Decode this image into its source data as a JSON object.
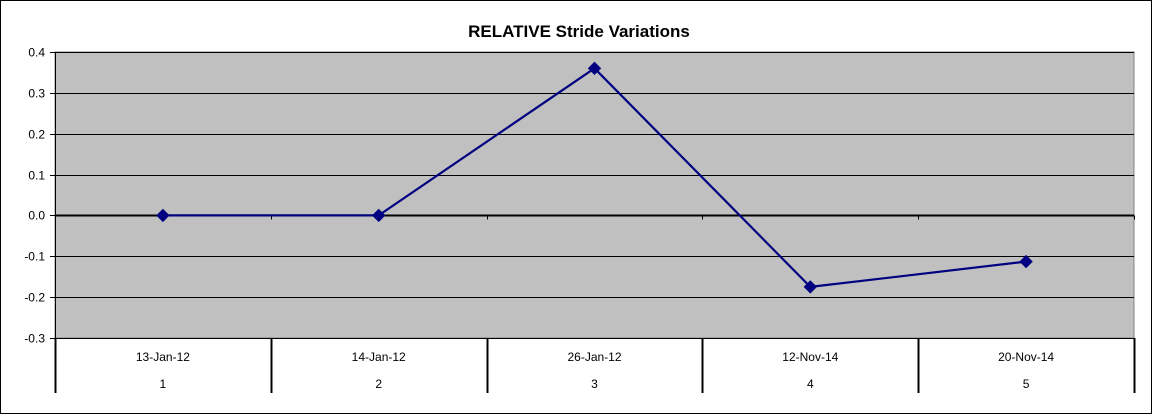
{
  "chart_data": {
    "type": "line",
    "title": "RELATIVE Stride Variations",
    "xlabel": "",
    "ylabel": "",
    "categories": [
      "13-Jan-12",
      "14-Jan-12",
      "26-Jan-12",
      "12-Nov-14",
      "20-Nov-14"
    ],
    "category_index": [
      "1",
      "2",
      "3",
      "4",
      "5"
    ],
    "series": [
      {
        "values": [
          0.0,
          0.0,
          0.36,
          -0.175,
          -0.113
        ]
      }
    ],
    "ylim": [
      -0.3,
      0.4
    ],
    "yticks": [
      0.4,
      0.3,
      0.2,
      0.1,
      0.0,
      -0.1,
      -0.2,
      -0.3
    ],
    "ytick_labels": [
      "0.4",
      "0.3",
      "0.2",
      "0.1",
      "0.0",
      "-0.1",
      "-0.2",
      "-0.3"
    ],
    "grid": true,
    "legend": "none",
    "marker": "diamond",
    "colors": {
      "plot_area": "#c0c0c0",
      "series": "#000080",
      "gridline": "#000000",
      "text": "#000000"
    }
  }
}
